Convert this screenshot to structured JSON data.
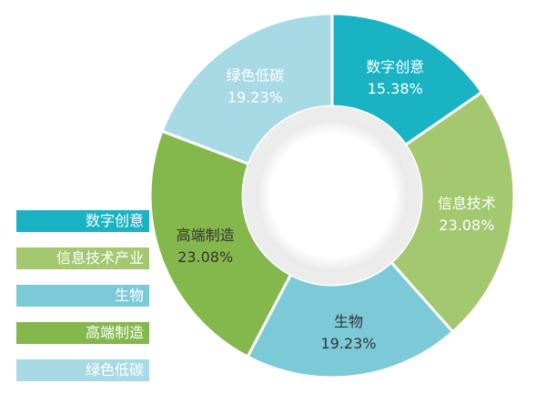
{
  "chart_data": {
    "type": "pie",
    "categories": [
      "数字创意",
      "信息技术",
      "生物",
      "高端制造",
      "绿色低碳"
    ],
    "values": [
      15.38,
      23.08,
      19.23,
      23.08,
      19.23
    ],
    "value_labels": [
      "15.38%",
      "23.08%",
      "19.23%",
      "23.08%",
      "19.23%"
    ],
    "colors": [
      "#19b3c4",
      "#a3c86f",
      "#7ccad8",
      "#84b84c",
      "#a7dae5"
    ],
    "label_colors": [
      "#ffffff",
      "#ffffff",
      "#333333",
      "#333333",
      "#ffffff"
    ],
    "donut": true,
    "legend_position": "left",
    "legend": [
      {
        "label": "数字创意",
        "color": "#19b3c4"
      },
      {
        "label": "信息技术产业",
        "color": "#a3c86f"
      },
      {
        "label": "生物",
        "color": "#7ccad8"
      },
      {
        "label": "高端制造",
        "color": "#84b84c"
      },
      {
        "label": "绿色低碳",
        "color": "#a7dae5"
      }
    ]
  }
}
